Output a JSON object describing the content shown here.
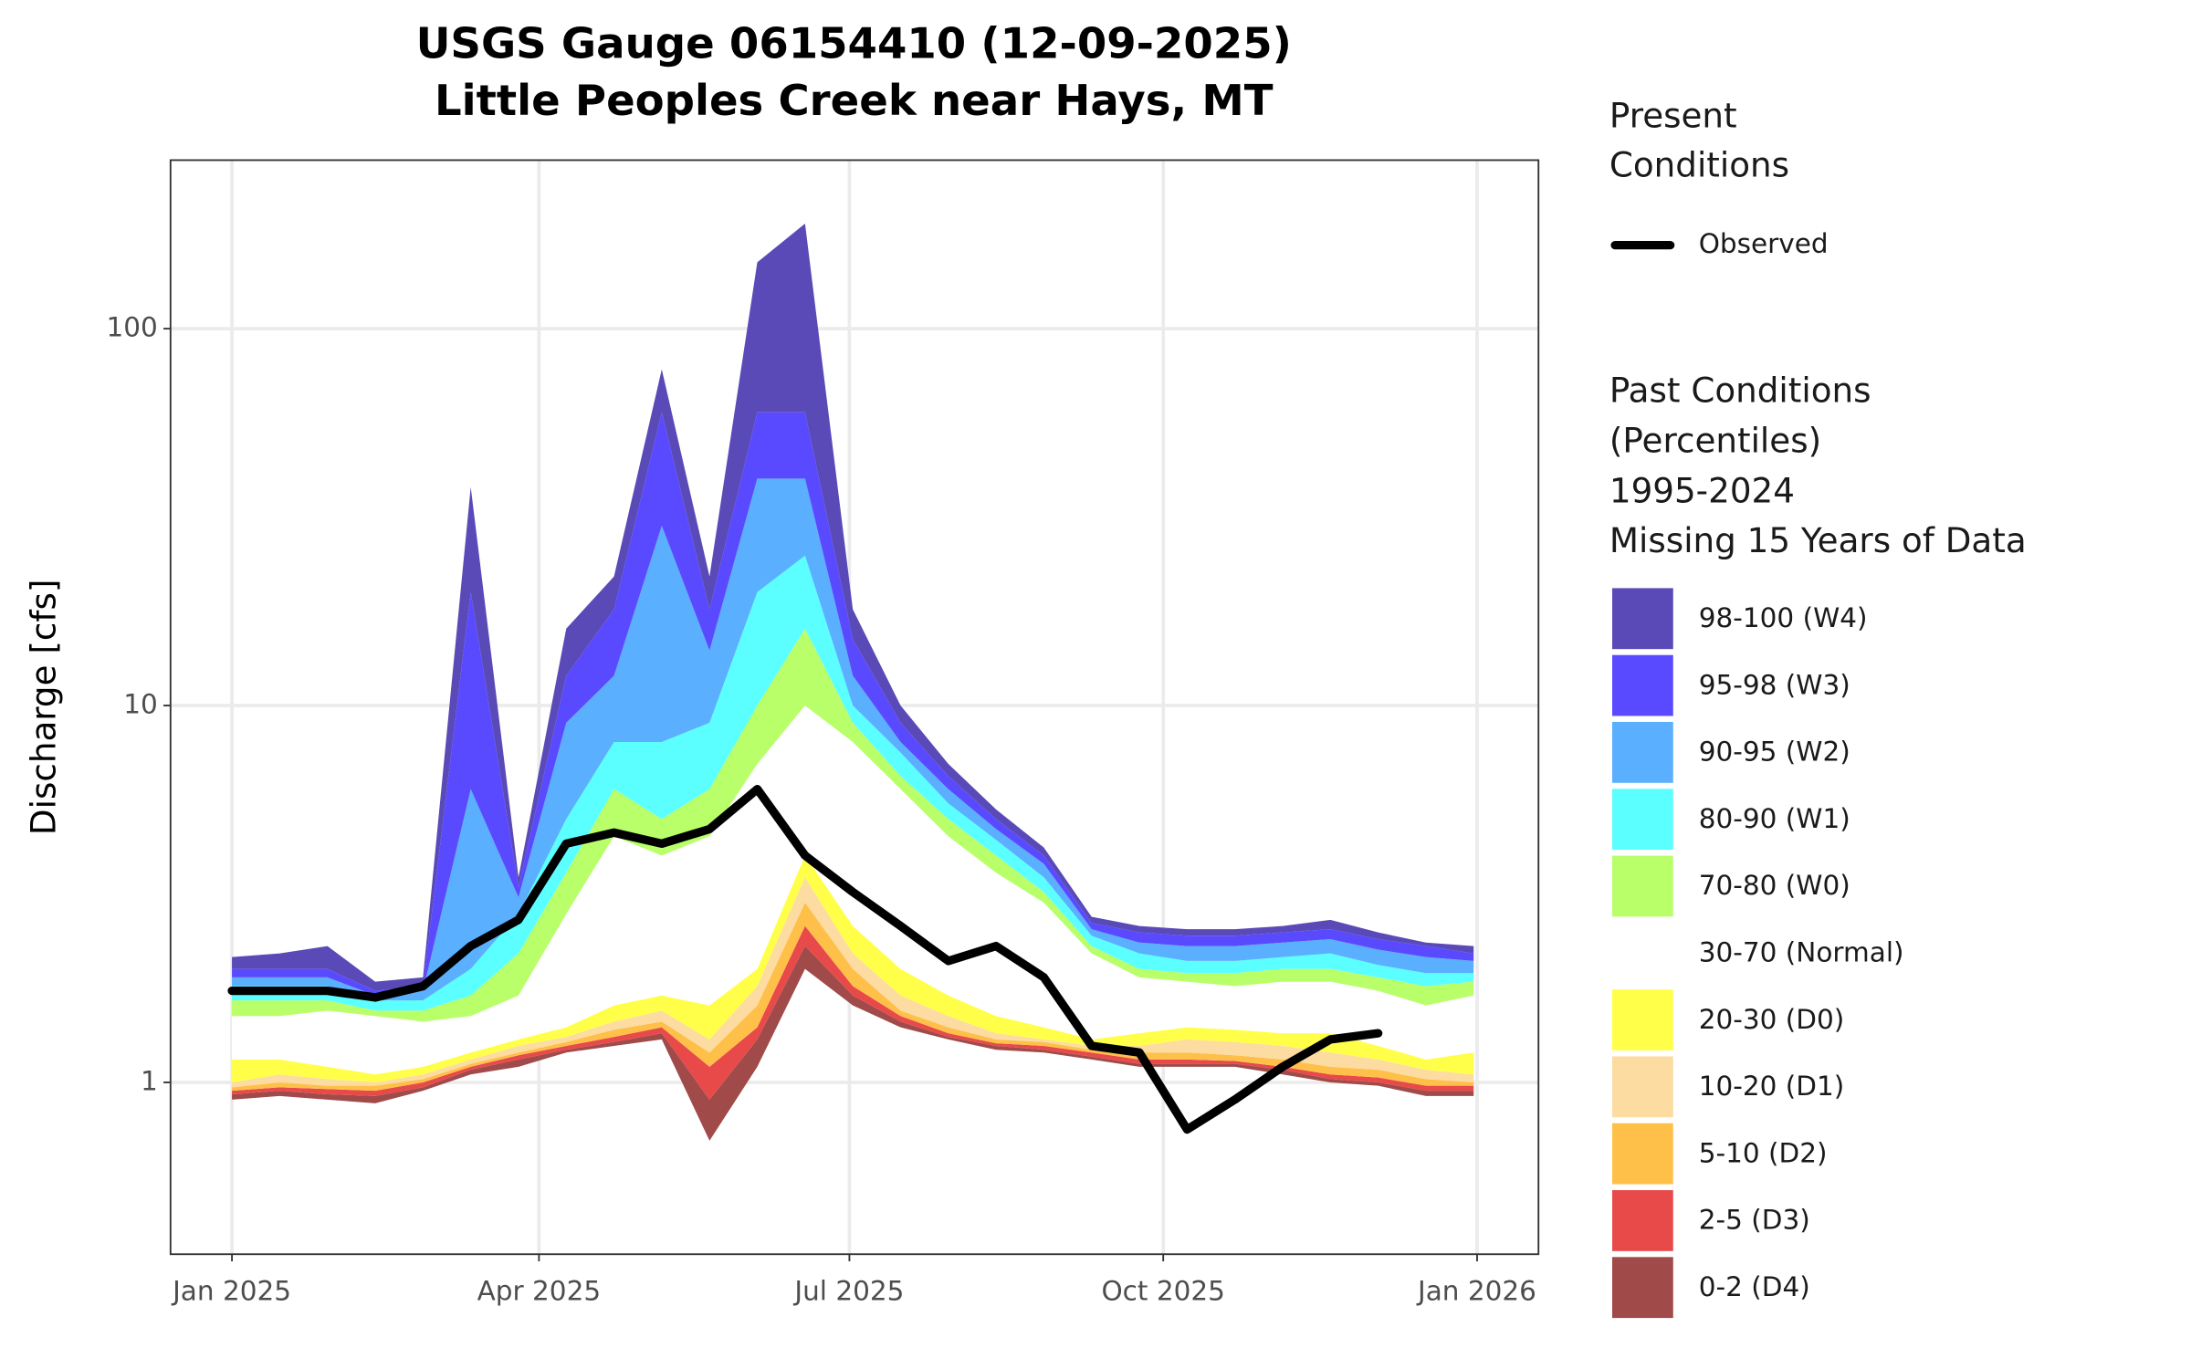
{
  "chart_data": {
    "type": "percentile-bands",
    "title": [
      "USGS Gauge 06154410 (12-09-2025)",
      "Little Peoples Creek near Hays, MT"
    ],
    "y_label": "Discharge [cfs]",
    "log_y": true,
    "grid": true,
    "legend_position": "right",
    "xlim": [
      -18,
      383
    ],
    "xticks": [
      {
        "value": 0,
        "label": "Jan 2025"
      },
      {
        "value": 90,
        "label": "Apr 2025"
      },
      {
        "value": 181,
        "label": "Jul 2025"
      },
      {
        "value": 273,
        "label": "Oct 2025"
      },
      {
        "value": 365,
        "label": "Jan 2026"
      }
    ],
    "ylim": [
      0.35,
      280
    ],
    "yticks": [
      1,
      10,
      100
    ],
    "x": [
      0,
      14,
      28,
      42,
      56,
      70,
      84,
      98,
      112,
      126,
      140,
      154,
      168,
      182,
      196,
      210,
      224,
      238,
      252,
      266,
      280,
      294,
      308,
      322,
      336,
      350,
      364
    ],
    "present_title": [
      "Present",
      "Conditions"
    ],
    "series": [
      {
        "name": "Observed",
        "color": "#000000",
        "values": [
          1.75,
          1.75,
          1.75,
          1.68,
          1.8,
          2.3,
          2.7,
          4.3,
          4.6,
          4.3,
          4.7,
          6.0,
          4.0,
          3.2,
          2.6,
          2.1,
          2.3,
          1.9,
          1.25,
          1.2,
          0.75,
          0.9,
          1.1,
          1.3,
          1.35,
          null,
          null
        ]
      }
    ],
    "past_title": [
      "Past Conditions",
      "(Percentiles)",
      "1995-2024",
      "Missing 15 Years of Data"
    ],
    "bands": [
      {
        "name": "0-2 (D4)",
        "color": "#a04a4a",
        "low": [
          0.9,
          0.92,
          0.9,
          0.88,
          0.95,
          1.05,
          1.1,
          1.2,
          1.25,
          1.3,
          0.7,
          1.1,
          2.0,
          1.6,
          1.4,
          1.3,
          1.22,
          1.2,
          1.15,
          1.1,
          1.1,
          1.1,
          1.05,
          1.0,
          0.98,
          0.92,
          0.92
        ],
        "values": [
          0.93,
          0.95,
          0.93,
          0.92,
          0.97,
          1.08,
          1.15,
          1.22,
          1.28,
          1.35,
          0.9,
          1.3,
          2.3,
          1.7,
          1.45,
          1.32,
          1.25,
          1.22,
          1.17,
          1.12,
          1.12,
          1.12,
          1.08,
          1.02,
          1.0,
          0.95,
          0.95
        ]
      },
      {
        "name": "2-5 (D3)",
        "color": "#e84a4a",
        "values": [
          0.95,
          0.97,
          0.96,
          0.95,
          1.0,
          1.1,
          1.18,
          1.25,
          1.32,
          1.4,
          1.1,
          1.4,
          2.6,
          1.8,
          1.5,
          1.35,
          1.27,
          1.25,
          1.2,
          1.15,
          1.15,
          1.14,
          1.1,
          1.05,
          1.03,
          0.98,
          0.98
        ]
      },
      {
        "name": "5-10 (D2)",
        "color": "#ffc04a",
        "values": [
          0.97,
          1.0,
          0.98,
          0.98,
          1.02,
          1.12,
          1.2,
          1.28,
          1.38,
          1.45,
          1.2,
          1.6,
          3.0,
          2.0,
          1.55,
          1.4,
          1.3,
          1.28,
          1.22,
          1.2,
          1.2,
          1.18,
          1.15,
          1.1,
          1.08,
          1.02,
          1.0
        ]
      },
      {
        "name": "10-20 (D1)",
        "color": "#fcdca0",
        "values": [
          1.0,
          1.05,
          1.02,
          1.0,
          1.05,
          1.15,
          1.25,
          1.32,
          1.45,
          1.55,
          1.3,
          1.8,
          3.5,
          2.2,
          1.7,
          1.5,
          1.35,
          1.3,
          1.25,
          1.25,
          1.3,
          1.28,
          1.25,
          1.2,
          1.15,
          1.08,
          1.05
        ]
      },
      {
        "name": "20-30 (D0)",
        "color": "#ffff4a",
        "values": [
          1.15,
          1.15,
          1.1,
          1.05,
          1.1,
          1.2,
          1.3,
          1.4,
          1.6,
          1.7,
          1.6,
          2.0,
          4.0,
          2.6,
          2.0,
          1.7,
          1.5,
          1.4,
          1.3,
          1.35,
          1.4,
          1.38,
          1.35,
          1.35,
          1.25,
          1.15,
          1.2
        ]
      },
      {
        "name": "30-70 (Normal)",
        "color": "#ffffff",
        "values": [
          1.5,
          1.5,
          1.55,
          1.5,
          1.45,
          1.5,
          1.7,
          2.8,
          4.5,
          4,
          4.5,
          7,
          10,
          8,
          6,
          4.5,
          3.6,
          3,
          2.2,
          1.9,
          1.85,
          1.8,
          1.85,
          1.85,
          1.75,
          1.6,
          1.7
        ]
      },
      {
        "name": "70-80 (W0)",
        "color": "#b8ff6a",
        "values": [
          1.65,
          1.65,
          1.65,
          1.55,
          1.55,
          1.7,
          2.2,
          3.6,
          6,
          5,
          6,
          10,
          16,
          9,
          6.5,
          5,
          4,
          3.2,
          2.3,
          2.0,
          1.95,
          1.95,
          2.0,
          2.0,
          1.9,
          1.8,
          1.85
        ]
      },
      {
        "name": "80-90 (W1)",
        "color": "#5cffff",
        "values": [
          1.8,
          1.8,
          1.8,
          1.65,
          1.65,
          2.0,
          2.8,
          5,
          8,
          8,
          9,
          20,
          25,
          10,
          7.5,
          5.5,
          4.4,
          3.5,
          2.45,
          2.2,
          2.1,
          2.1,
          2.15,
          2.2,
          2.05,
          1.95,
          1.95
        ]
      },
      {
        "name": "90-95 (W2)",
        "color": "#5aafff",
        "values": [
          1.9,
          1.9,
          1.9,
          1.7,
          1.75,
          6,
          3.1,
          9,
          12,
          30,
          14,
          40,
          40,
          12,
          8,
          6,
          4.7,
          3.8,
          2.55,
          2.35,
          2.3,
          2.3,
          2.35,
          2.4,
          2.25,
          2.15,
          2.1
        ]
      },
      {
        "name": "95-98 (W3)",
        "color": "#5a4aff",
        "values": [
          2.0,
          2.0,
          2.0,
          1.75,
          1.8,
          20,
          3.3,
          12,
          18,
          60,
          18,
          60,
          60,
          15,
          9,
          6.5,
          5,
          4,
          2.65,
          2.5,
          2.45,
          2.45,
          2.5,
          2.55,
          2.4,
          2.3,
          2.2
        ]
      },
      {
        "name": "98-100 (W4)",
        "color": "#5a4ab8",
        "values": [
          2.15,
          2.2,
          2.3,
          1.85,
          1.9,
          38,
          3.5,
          16,
          22,
          78,
          22,
          150,
          190,
          18,
          10,
          7,
          5.3,
          4.2,
          2.75,
          2.6,
          2.55,
          2.55,
          2.6,
          2.7,
          2.5,
          2.35,
          2.3
        ]
      }
    ]
  }
}
